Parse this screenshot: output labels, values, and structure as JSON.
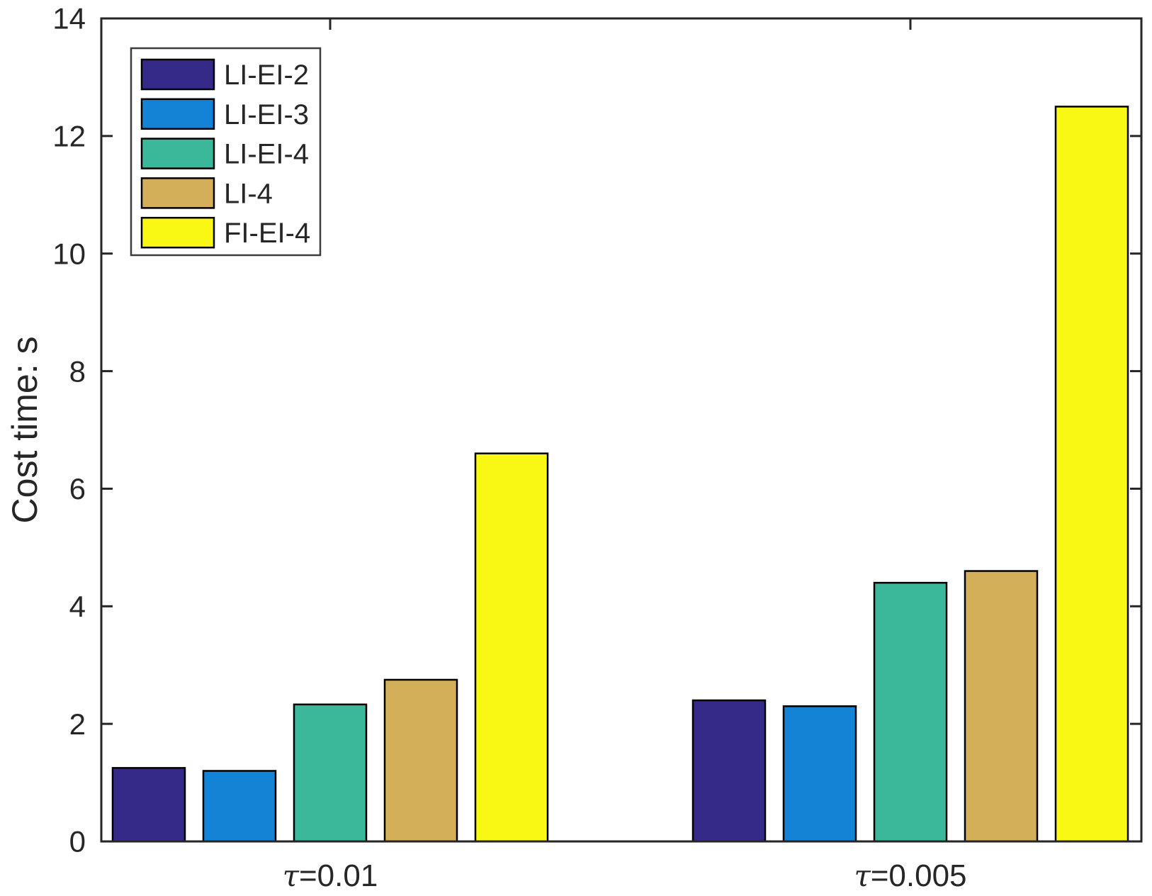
{
  "figure": {
    "background": "#FFFFFF",
    "axis_color": "#262626",
    "bar_edge_color": "#000000",
    "legend_border_color": "#3C3C3C"
  },
  "chart_data": {
    "type": "bar",
    "title": "",
    "xlabel": "",
    "ylabel": "Cost time: s",
    "ylim": [
      0,
      14
    ],
    "yticks": [
      0,
      2,
      4,
      6,
      8,
      10,
      12,
      14
    ],
    "ytick_labels": [
      "0",
      "2",
      "4",
      "6",
      "8",
      "10",
      "12",
      "14"
    ],
    "categories": [
      "τ=0.01",
      "τ=0.005"
    ],
    "series": [
      {
        "name": "LI-EI-2",
        "color": "#352A87",
        "values": [
          1.25,
          2.4
        ]
      },
      {
        "name": "LI-EI-3",
        "color": "#1583D5",
        "values": [
          1.2,
          2.3
        ]
      },
      {
        "name": "LI-EI-4",
        "color": "#3BB89A",
        "values": [
          2.33,
          4.4
        ]
      },
      {
        "name": "LI-4",
        "color": "#D2AF58",
        "values": [
          2.75,
          4.6
        ]
      },
      {
        "name": "FI-EI-4",
        "color": "#F9F714",
        "values": [
          6.6,
          12.5
        ]
      }
    ],
    "legend": {
      "entries": [
        "LI-EI-2",
        "LI-EI-3",
        "LI-EI-4",
        "LI-4",
        "FI-EI-4"
      ],
      "position": "top-left"
    },
    "grid": false
  }
}
